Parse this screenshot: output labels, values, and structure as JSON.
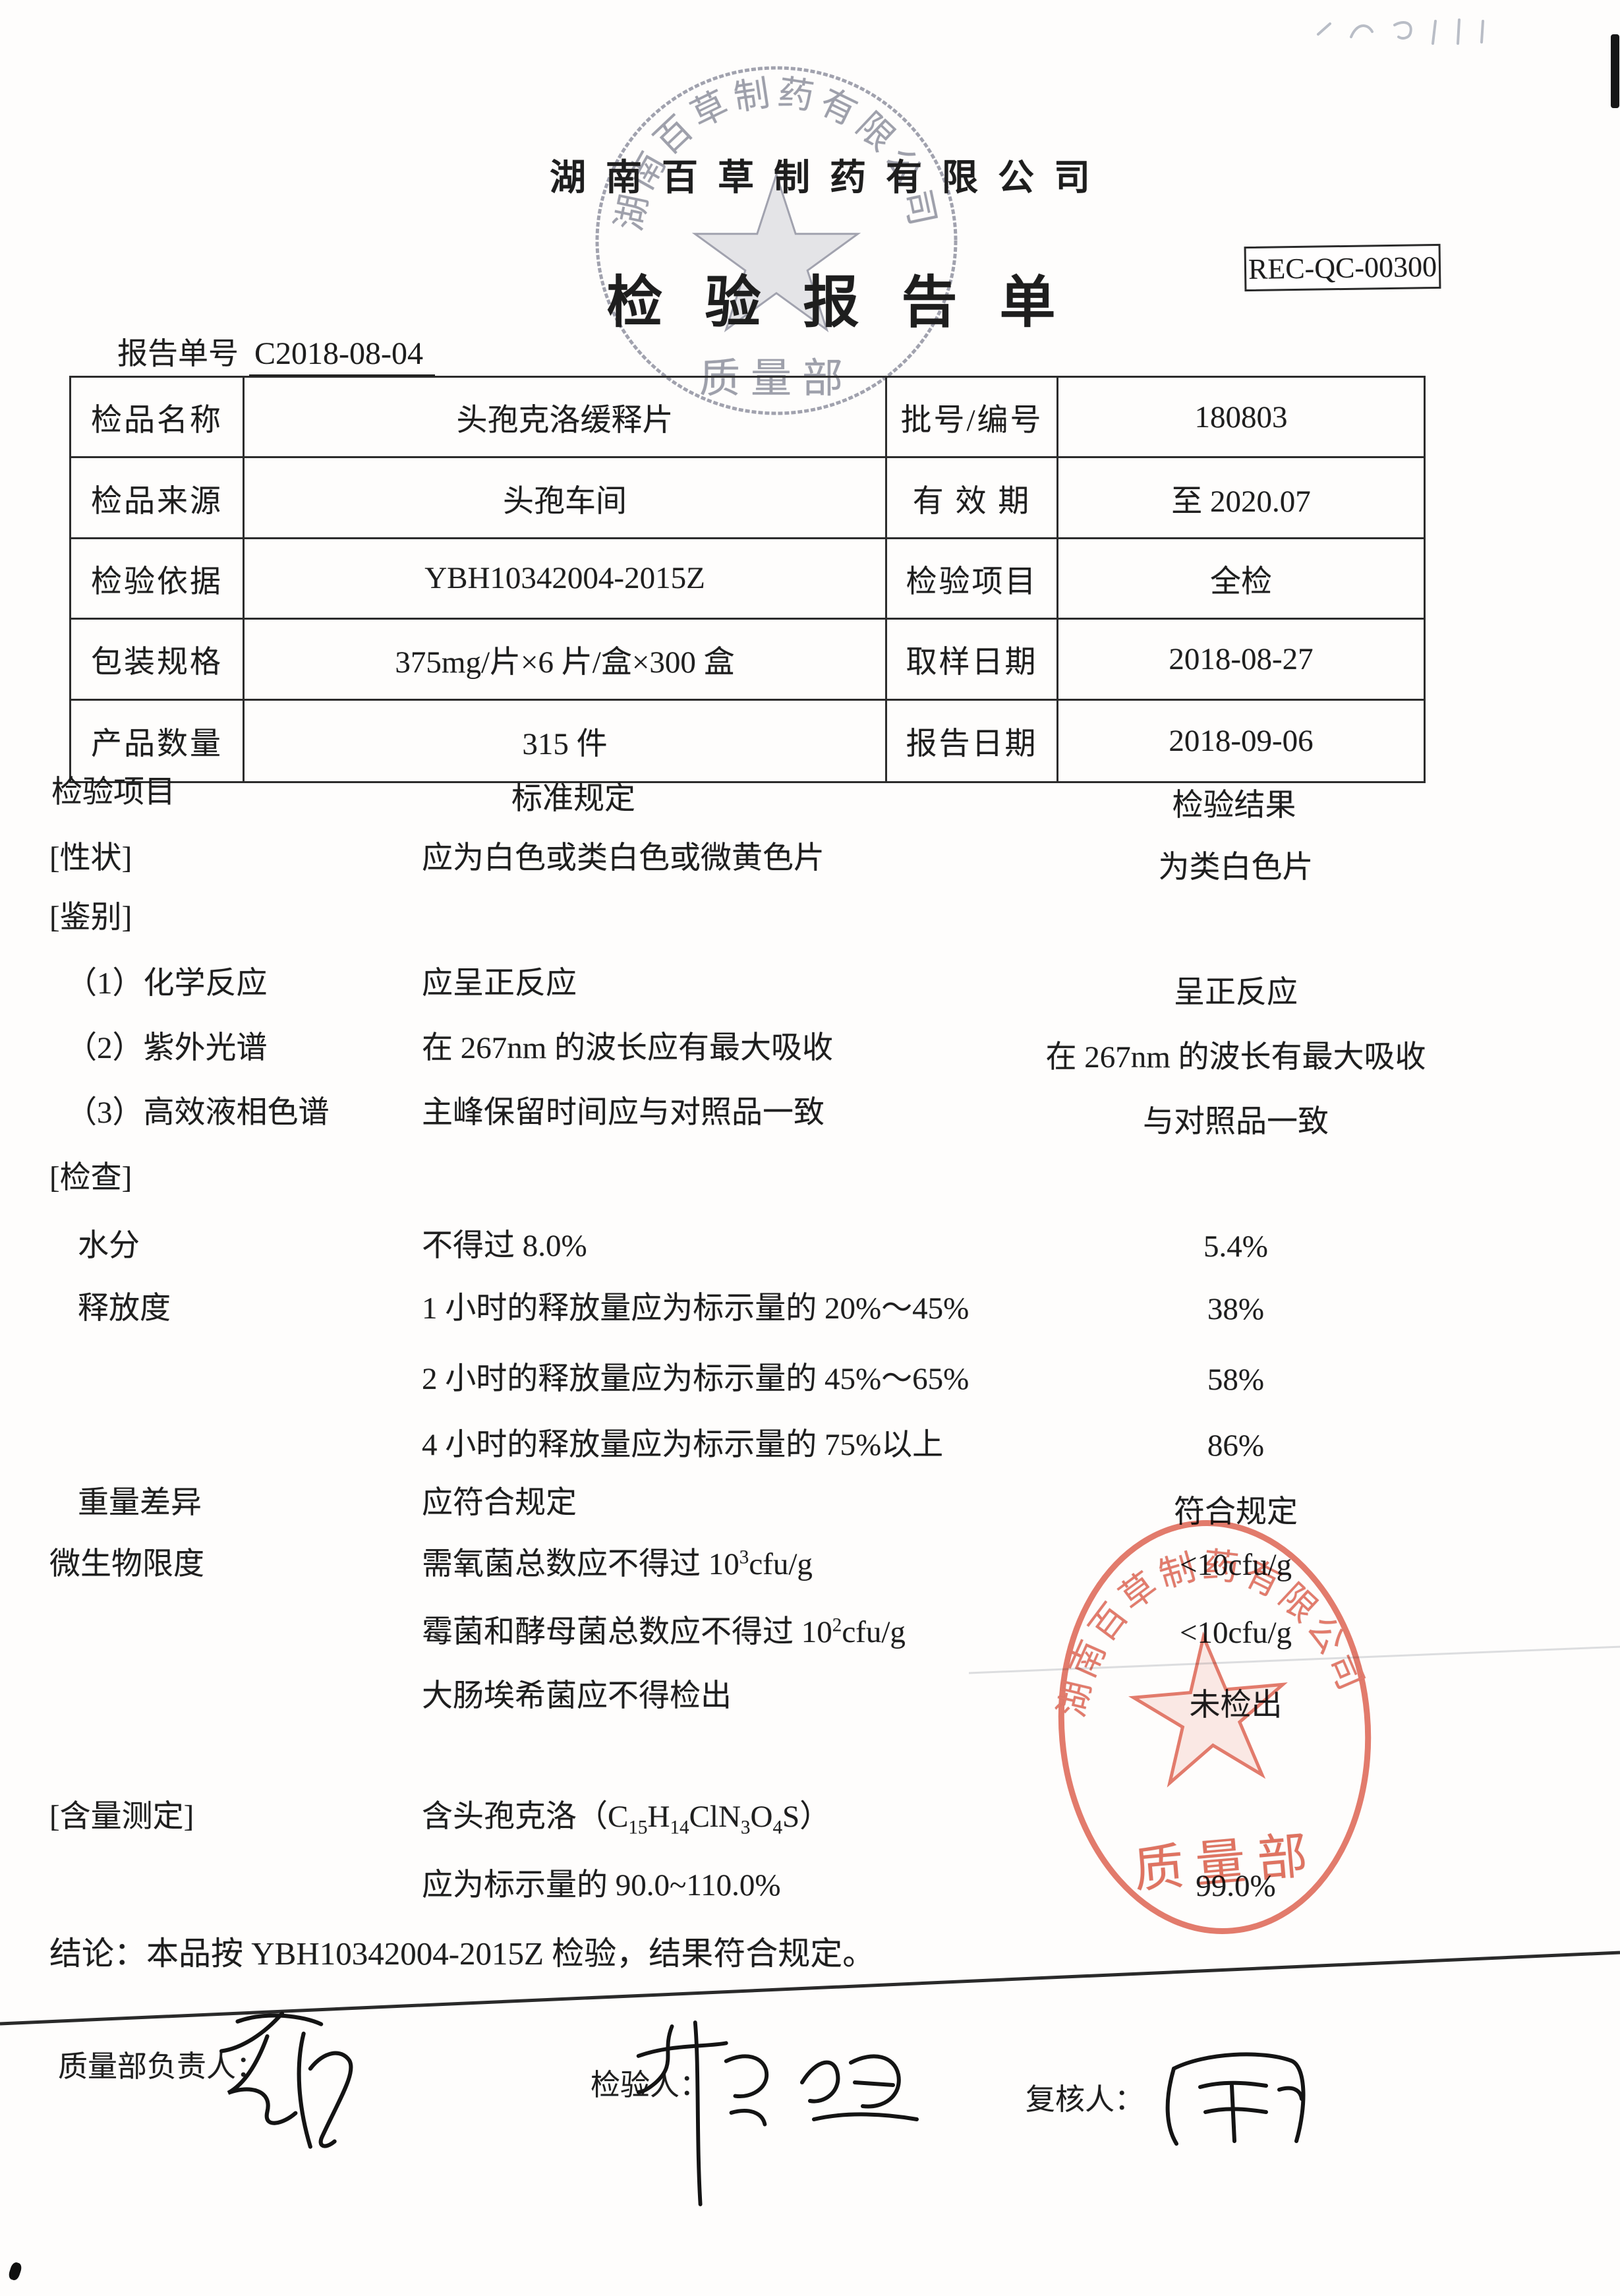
{
  "header": {
    "company": "湖南百草制药有限公司",
    "title": "检验报告单",
    "doc_code": "REC-QC-00300",
    "report_no_label": "报告单号",
    "report_no": "C2018-08-04"
  },
  "info_table": {
    "rows": [
      {
        "c0": "检品名称",
        "c1": "头孢克洛缓释片",
        "c2": "批号/编号",
        "c3": "180803"
      },
      {
        "c0": "检品来源",
        "c1": "头孢车间",
        "c2": "有 效 期",
        "c3": "至 2020.07"
      },
      {
        "c0": "检验依据",
        "c1": "YBH10342004-2015Z",
        "c2": "检验项目",
        "c3": "全检"
      },
      {
        "c0": "包装规格",
        "c1": "375mg/片×6 片/盒×300 盒",
        "c2": "取样日期",
        "c3": "2018-08-27"
      },
      {
        "c0": "产品数量",
        "c1": "315 件",
        "c2": "报告日期",
        "c3": "2018-09-06"
      }
    ]
  },
  "results": {
    "headers": {
      "item": "检验项目",
      "spec": "标准规定",
      "result": "检验结果"
    },
    "rows": [
      {
        "item": "[性状]",
        "spec": "应为白色或类白色或微黄色片",
        "result": "为类白色片"
      },
      {
        "item": "[鉴别]",
        "spec": "",
        "result": ""
      },
      {
        "item": "（1）化学反应",
        "spec": "应呈正反应",
        "result": "呈正反应"
      },
      {
        "item": "（2）紫外光谱",
        "spec": "在 267nm 的波长应有最大吸收",
        "result": "在 267nm 的波长有最大吸收"
      },
      {
        "item": "（3）高效液相色谱",
        "spec": "主峰保留时间应与对照品一致",
        "result": "与对照品一致"
      },
      {
        "item": "[检查]",
        "spec": "",
        "result": ""
      },
      {
        "item": "水分",
        "spec": "不得过 8.0%",
        "result": "5.4%"
      },
      {
        "item": "释放度",
        "spec": "1 小时的释放量应为标示量的 20%～45%",
        "result": "38%"
      },
      {
        "item": "",
        "spec": "2 小时的释放量应为标示量的 45%～65%",
        "result": "58%"
      },
      {
        "item": "",
        "spec": "4 小时的释放量应为标示量的 75%以上",
        "result": "86%"
      },
      {
        "item": "重量差异",
        "spec": "应符合规定",
        "result": "符合规定"
      },
      {
        "item": "微生物限度",
        "spec": "需氧菌总数应不得过 10{^3}cfu/g",
        "result": "<10cfu/g"
      },
      {
        "item": "",
        "spec": "霉菌和酵母菌总数应不得过 10{^2}cfu/g",
        "result": "<10cfu/g"
      },
      {
        "item": "",
        "spec": "大肠埃希菌应不得检出",
        "result": "未检出"
      },
      {
        "item": "[含量测定]",
        "spec": "含头孢克洛（C{_15}H{_14}ClN{_3}O{_4}S）",
        "result": ""
      },
      {
        "item": "",
        "spec": "应为标示量的 90.0~110.0%",
        "result": "99.0%"
      }
    ]
  },
  "conclusion": "结论：本品按 YBH10342004-2015Z 检验，结果符合规定。",
  "footer": {
    "qa_label": "质量部负责人：",
    "inspector_label": "检验人：",
    "reviewer_label": "复核人：",
    "qa_signature": "蔡丽华（手写签名）",
    "inspector_signature_1": "朱巧海（手写签名）",
    "inspector_signature_2": "陈凤（手写签名）",
    "reviewer_signature": "周丽（手写签名）"
  },
  "stamps": {
    "company": "湖南百草制药有限公司",
    "dept": "质量部",
    "red_color": "#dd5f4c",
    "gray_color": "#9193a1"
  }
}
